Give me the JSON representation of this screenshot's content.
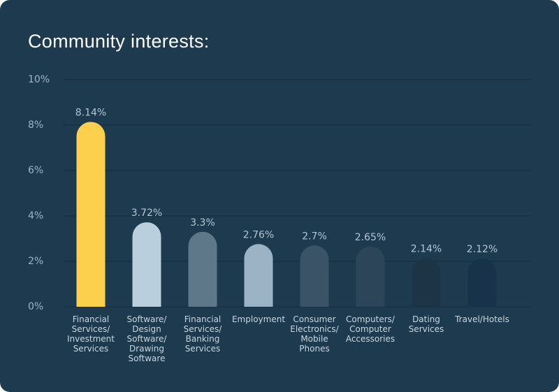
{
  "title": "Community interests:",
  "chart_data": {
    "type": "bar",
    "title": "Community interests:",
    "xlabel": "",
    "ylabel": "",
    "ylim": [
      0,
      10
    ],
    "yticks": [
      0,
      2,
      4,
      6,
      8,
      10
    ],
    "ytick_labels": [
      "0%",
      "2%",
      "4%",
      "6%",
      "8%",
      "10%"
    ],
    "grid": true,
    "categories": [
      "Financial Services/ Investment Services",
      "Software/ Design Software/ Drawing Software",
      "Financial Services/ Banking Services",
      "Employment",
      "Consumer Electronics/ Mobile Phones",
      "Computers/ Computer Accessories",
      "Dating Services",
      "Travel/Hotels"
    ],
    "category_lines": [
      [
        "Financial",
        "Services/",
        "Investment",
        "Services"
      ],
      [
        "Software/",
        "Design",
        "Software/",
        "Drawing",
        "Software"
      ],
      [
        "Financial",
        "Services/",
        "Banking",
        "Services"
      ],
      [
        "Employment"
      ],
      [
        "Consumer",
        "Electronics/",
        "Mobile",
        "Phones"
      ],
      [
        "Computers/",
        "Computer",
        "Accessories"
      ],
      [
        "Dating",
        "Services"
      ],
      [
        "Travel/Hotels"
      ]
    ],
    "values": [
      8.14,
      3.72,
      3.3,
      2.76,
      2.7,
      2.65,
      2.14,
      2.12
    ],
    "value_labels": [
      "8.14%",
      "3.72%",
      "3.3%",
      "2.76%",
      "2.7%",
      "2.65%",
      "2.14%",
      "2.12%"
    ],
    "colors": [
      "#fccf4d",
      "#b9cfdd",
      "#5f7889",
      "#9bb3c4",
      "#3a5366",
      "#2c4558",
      "#1d3446",
      "#183249"
    ]
  }
}
